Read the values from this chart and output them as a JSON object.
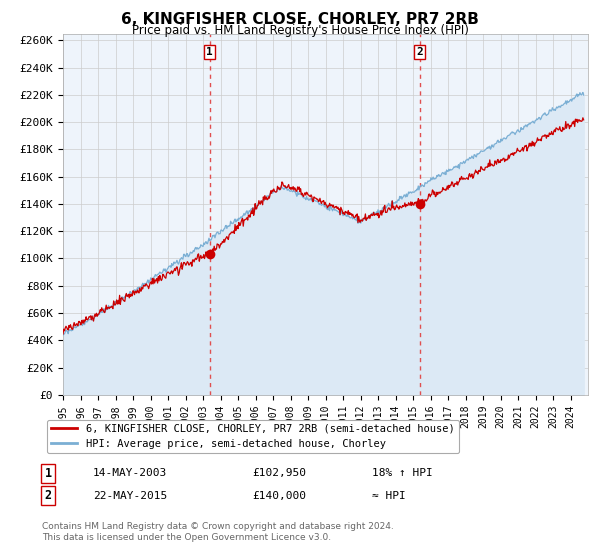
{
  "title": "6, KINGFISHER CLOSE, CHORLEY, PR7 2RB",
  "subtitle": "Price paid vs. HM Land Registry's House Price Index (HPI)",
  "ylim": [
    0,
    260000
  ],
  "yticks": [
    0,
    20000,
    40000,
    60000,
    80000,
    100000,
    120000,
    140000,
    160000,
    180000,
    200000,
    220000,
    240000,
    260000
  ],
  "legend_line1": "6, KINGFISHER CLOSE, CHORLEY, PR7 2RB (semi-detached house)",
  "legend_line2": "HPI: Average price, semi-detached house, Chorley",
  "table_row1": [
    "1",
    "14-MAY-2003",
    "£102,950",
    "18% ↑ HPI"
  ],
  "table_row2": [
    "2",
    "22-MAY-2015",
    "£140,000",
    "≈ HPI"
  ],
  "footer1": "Contains HM Land Registry data © Crown copyright and database right 2024.",
  "footer2": "This data is licensed under the Open Government Licence v3.0.",
  "price_line_color": "#cc0000",
  "hpi_line_color": "#7bafd4",
  "hpi_fill_color": "#dce9f5",
  "vline_color": "#e05050",
  "marker_color": "#cc0000",
  "bg_color": "#ffffff",
  "plot_bg_color": "#eef4fb",
  "grid_color": "#cccccc",
  "sale1_year": 2003.37,
  "sale1_price": 102950,
  "sale2_year": 2015.37,
  "sale2_price": 140000,
  "start_year": 1995,
  "end_year": 2024
}
